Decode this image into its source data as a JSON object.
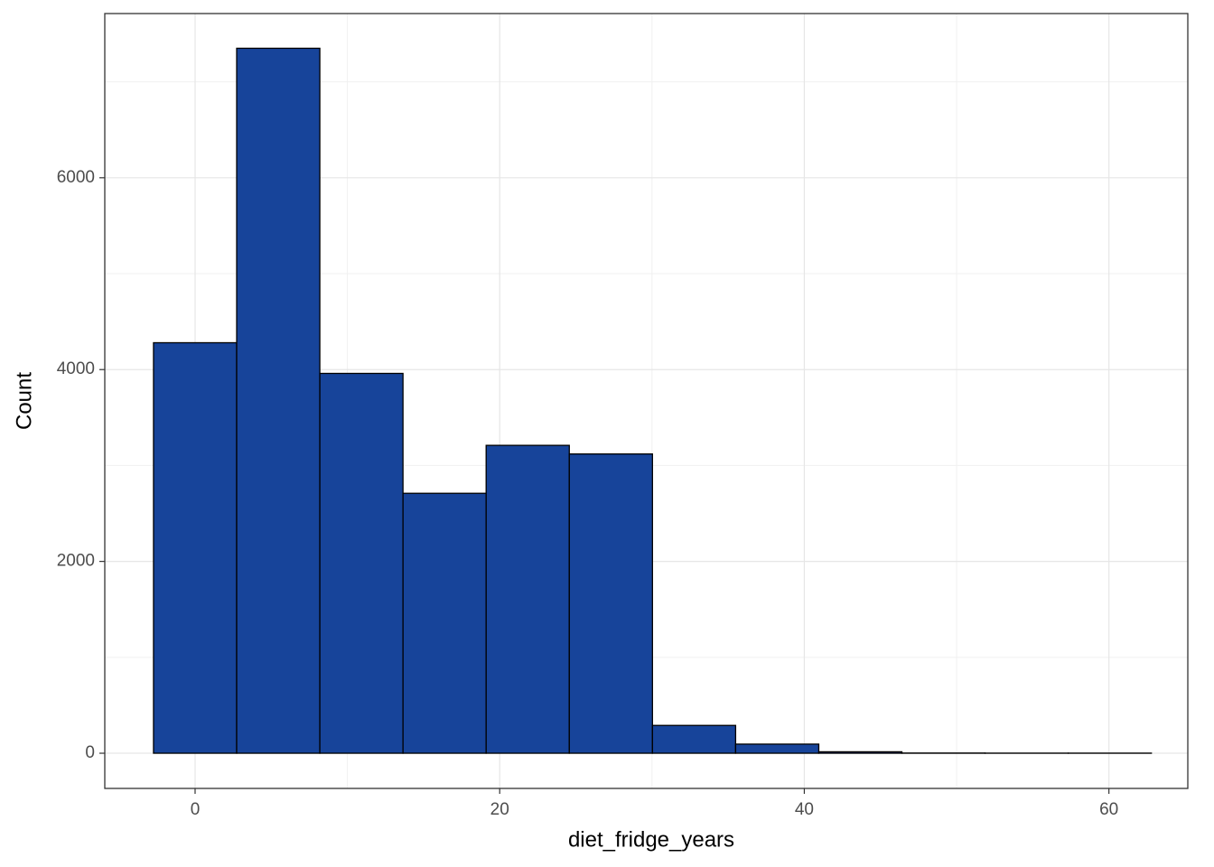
{
  "chart_data": {
    "type": "histogram",
    "x_label": "diet_fridge_years",
    "y_label": "Count",
    "bins": [
      -2.73,
      2.73,
      8.19,
      13.65,
      19.11,
      24.57,
      30.03,
      35.49,
      40.95,
      46.41,
      51.87,
      57.33,
      62.79
    ],
    "counts": [
      4280,
      7350,
      3960,
      2710,
      3210,
      3120,
      290,
      95,
      15,
      2,
      1,
      1
    ],
    "color": "#17449a",
    "edge_color": "#000000",
    "xlim": [
      -5.93,
      65.18
    ],
    "xticks": [
      0,
      20,
      40,
      60
    ],
    "minor_xticks": [
      10,
      30,
      50
    ],
    "ylim": [
      -367,
      7712
    ],
    "yticks": [
      0,
      2000,
      4000,
      6000
    ],
    "minor_yticks": [
      1000,
      3000,
      5000,
      7000
    ],
    "grid": true
  }
}
